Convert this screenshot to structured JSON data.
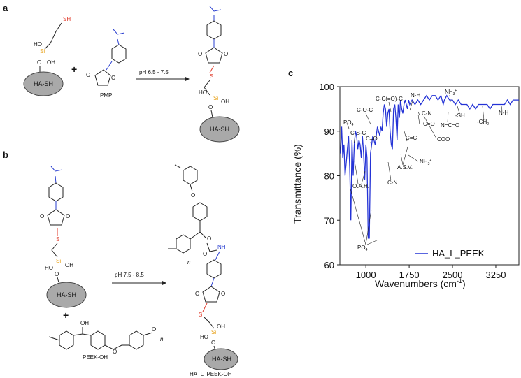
{
  "panels": {
    "a": "a",
    "b": "b",
    "c": "c"
  },
  "scheme_a": {
    "sh_label": "SH",
    "si_label": "Si",
    "oh1": "HO",
    "oh2": "OH",
    "o_label": "O",
    "particle": "HA-SH",
    "plus": "+",
    "reagent": "PMPI",
    "condition": "pH 6.5 - 7.5",
    "prod_particle": "HA-SH",
    "prod_s": "S",
    "prod_si": "Si",
    "prod_ho": "HO",
    "prod_oh": "OH",
    "prod_o": "O"
  },
  "scheme_b": {
    "particle": "HA-SH",
    "plus": "+",
    "peek_label": "PEEK-OH",
    "peek_n": "n",
    "peek_oh": "OH",
    "condition": "pH 7.5 - 8.5",
    "product_label": "HA_L_PEEK-OH",
    "prod_particle": "HA-SH",
    "nh": "NH",
    "n": "n",
    "s": "S",
    "si": "Si",
    "ho": "HO",
    "oh": "OH",
    "o": "O"
  },
  "chart_data": {
    "type": "line",
    "xlabel": "Wavenumbers (cm",
    "xlabel_sup": "-1",
    "xlabel_close": ")",
    "ylabel": "Transmittance (%)",
    "xlim": [
      550,
      3650
    ],
    "ylim": [
      60,
      100
    ],
    "xticks": [
      1000,
      1750,
      2500,
      3250
    ],
    "yticks": [
      60,
      70,
      80,
      90,
      100
    ],
    "legend": "HA_L_PEEK",
    "legend_position": "bottom-right",
    "series": [
      {
        "color": "#2433d6",
        "x": [
          560,
          580,
          600,
          620,
          640,
          660,
          680,
          700,
          720,
          740,
          760,
          780,
          800,
          820,
          840,
          860,
          880,
          900,
          920,
          940,
          960,
          980,
          1000,
          1020,
          1040,
          1060,
          1080,
          1100,
          1120,
          1140,
          1160,
          1180,
          1200,
          1220,
          1240,
          1260,
          1280,
          1300,
          1320,
          1340,
          1360,
          1380,
          1400,
          1420,
          1440,
          1460,
          1480,
          1500,
          1520,
          1540,
          1560,
          1580,
          1600,
          1620,
          1640,
          1660,
          1680,
          1700,
          1720,
          1740,
          1760,
          1800,
          1850,
          1900,
          1950,
          2000,
          2050,
          2100,
          2150,
          2200,
          2250,
          2300,
          2340,
          2360,
          2400,
          2450,
          2500,
          2550,
          2600,
          2650,
          2700,
          2750,
          2800,
          2850,
          2900,
          2950,
          3000,
          3050,
          3100,
          3150,
          3200,
          3250,
          3300,
          3350,
          3400,
          3450,
          3500,
          3550,
          3600,
          3650
        ],
        "y": [
          85,
          91,
          84,
          87,
          80,
          83,
          86,
          89,
          82,
          70,
          88,
          80,
          87,
          90,
          89,
          86,
          88,
          87,
          84,
          89,
          85,
          79,
          87,
          84,
          66,
          66,
          85,
          87,
          89,
          88,
          87,
          89,
          91,
          90,
          89,
          91,
          90,
          94,
          96,
          95,
          91,
          94,
          95,
          90,
          87,
          86,
          95,
          96,
          93,
          88,
          96,
          93,
          97,
          95,
          94,
          96,
          97,
          96,
          95,
          97,
          96,
          97,
          96,
          97,
          96,
          97,
          98,
          97,
          98,
          98,
          97,
          98,
          96,
          97,
          98,
          97,
          97,
          96,
          97,
          96,
          96,
          96,
          95,
          96,
          95,
          96,
          96,
          96,
          96,
          95,
          96,
          96,
          96,
          96,
          96,
          97,
          96,
          97,
          97,
          97
        ]
      }
    ],
    "annotations": [
      "PO4",
      "C-S-C",
      "C=O",
      "O.A.H.",
      "PO4",
      "C-O-C",
      "C-C(=O)-C",
      "N-H",
      "C-N",
      "C=O",
      "C=C",
      "COO-",
      "A.S.V.",
      "NH3+",
      "C-N",
      "NH3+",
      "-SH",
      "N=C=O",
      "-CH2",
      "N-H"
    ]
  }
}
